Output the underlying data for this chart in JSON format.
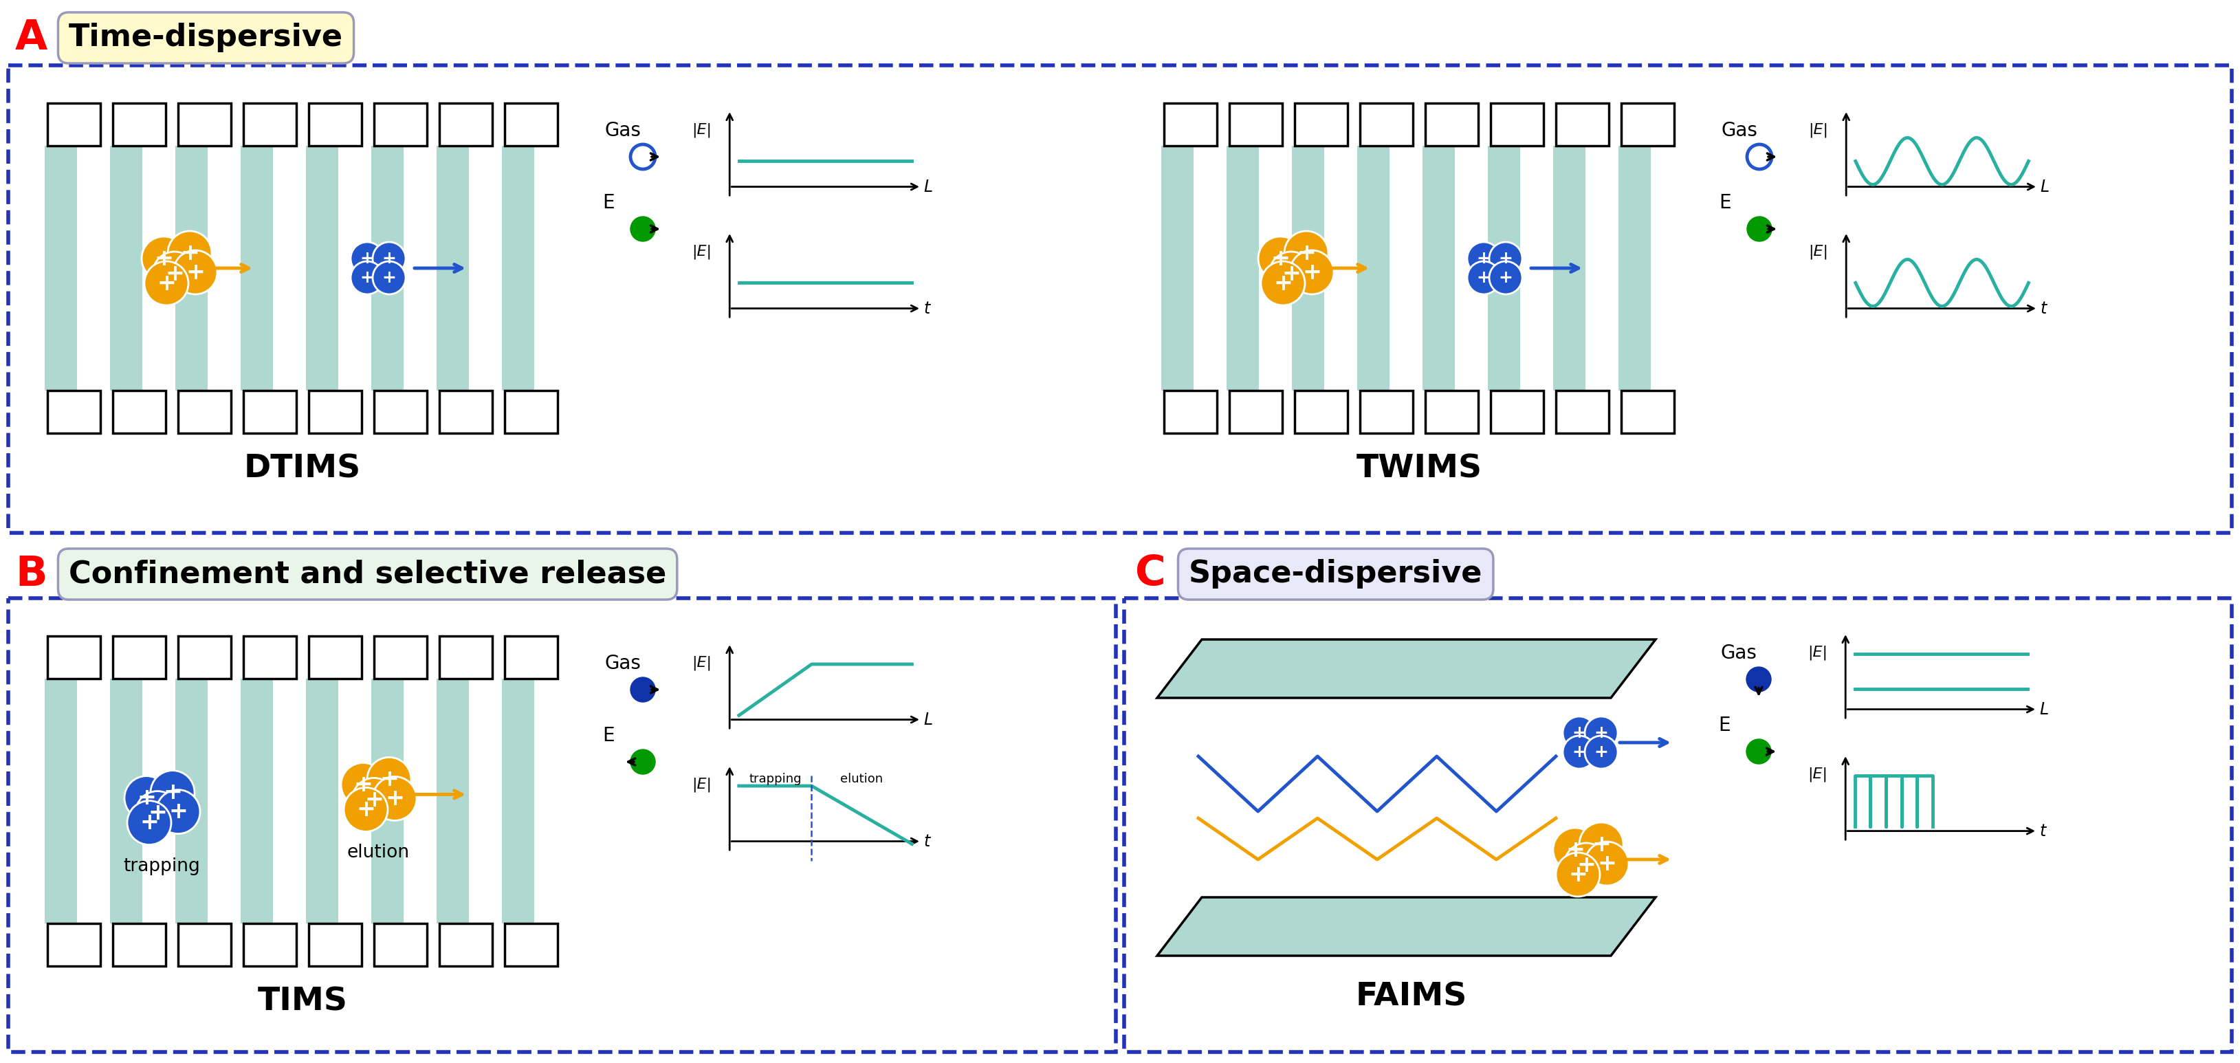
{
  "title_A": "Time-dispersive",
  "title_B": "Confinement and selective release",
  "title_C": "Space-dispersive",
  "label_DTIMS": "DTIMS",
  "label_TWIMS": "TWIMS",
  "label_TIMS": "TIMS",
  "label_FAIMS": "FAIMS",
  "label_A": "A",
  "label_B": "B",
  "label_C": "C",
  "teal_color": "#2ab0a0",
  "teal_light": "#aed8d0",
  "orange_color": "#f0a000",
  "blue_color": "#2255cc",
  "green_color": "#009900",
  "dark_blue": "#2233bb",
  "bg_color": "#ffffff",
  "box_A_fill": "#fffacd",
  "box_B_fill": "#e8f5e8",
  "box_C_fill": "#e8e8f8"
}
